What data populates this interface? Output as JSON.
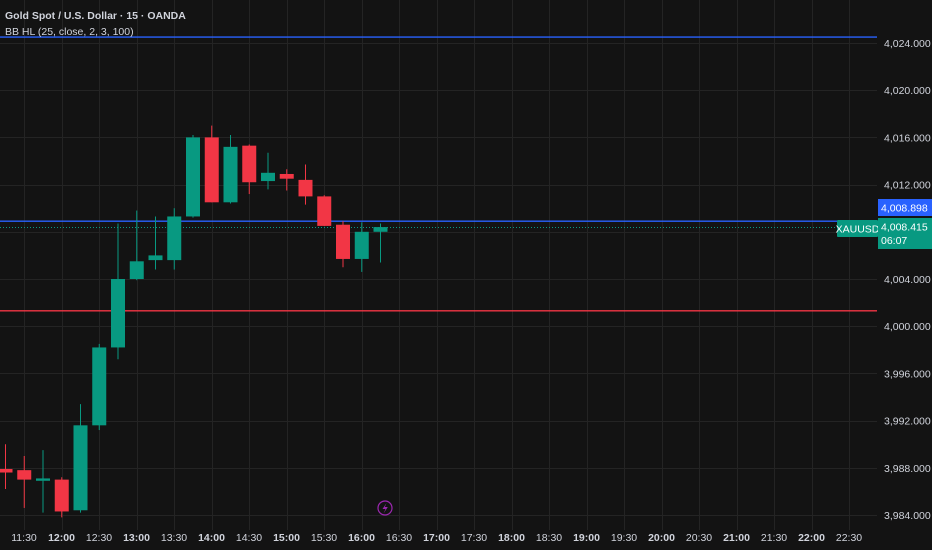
{
  "header": {
    "title": "Gold Spot / U.S. Dollar · 15 · OANDA",
    "indicator": "BB HL (25, close, 2, 3, 100)"
  },
  "price_axis": {
    "symbol": "XAUUSD",
    "blue_line_label": "4,008.898",
    "current_price_label": "4,008.415",
    "countdown": "06:07"
  },
  "colors": {
    "background": "#131313",
    "up": "#089981",
    "down": "#f23645",
    "blue_line": "#2962ff",
    "red_line": "#f23645",
    "grid": "#242424",
    "text": "#d1d4dc",
    "lightning": "#9c27b0"
  },
  "chart_data": {
    "type": "candlestick",
    "title": "Gold Spot / U.S. Dollar · 15 · OANDA",
    "x_ticks": [
      {
        "label": "11:30",
        "bold": false
      },
      {
        "label": "12:00",
        "bold": true
      },
      {
        "label": "12:30",
        "bold": false
      },
      {
        "label": "13:00",
        "bold": true
      },
      {
        "label": "13:30",
        "bold": false
      },
      {
        "label": "14:00",
        "bold": true
      },
      {
        "label": "14:30",
        "bold": false
      },
      {
        "label": "15:00",
        "bold": true
      },
      {
        "label": "15:30",
        "bold": false
      },
      {
        "label": "16:00",
        "bold": true
      },
      {
        "label": "16:30",
        "bold": false
      },
      {
        "label": "17:00",
        "bold": true
      },
      {
        "label": "17:30",
        "bold": false
      },
      {
        "label": "18:00",
        "bold": true
      },
      {
        "label": "18:30",
        "bold": false
      },
      {
        "label": "19:00",
        "bold": true
      },
      {
        "label": "19:30",
        "bold": false
      },
      {
        "label": "20:00",
        "bold": true
      },
      {
        "label": "20:30",
        "bold": false
      },
      {
        "label": "21:00",
        "bold": true
      },
      {
        "label": "21:30",
        "bold": false
      },
      {
        "label": "22:00",
        "bold": true
      },
      {
        "label": "22:30",
        "bold": false
      }
    ],
    "y_ticks": [
      "3,984.000",
      "3,988.000",
      "3,992.000",
      "3,996.000",
      "4,000.000",
      "4,004.000",
      "4,008.000",
      "4,012.000",
      "4,016.000",
      "4,020.000",
      "4,024.000"
    ],
    "y_tick_values": [
      3984,
      3988,
      3992,
      3996,
      4000,
      4004,
      4008,
      4012,
      4016,
      4020,
      4024
    ],
    "ylim": [
      3983.5,
      4028.3
    ],
    "grid": true,
    "candles": [
      {
        "t": "11:30",
        "o": 3987.9,
        "h": 3990.0,
        "l": 3986.2,
        "c": 3987.6
      },
      {
        "t": "11:45",
        "o": 3987.8,
        "h": 3989.0,
        "l": 3984.6,
        "c": 3987.0
      },
      {
        "t": "12:00",
        "o": 3986.9,
        "h": 3989.5,
        "l": 3984.2,
        "c": 3987.1
      },
      {
        "t": "12:15",
        "o": 3987.0,
        "h": 3987.2,
        "l": 3983.8,
        "c": 3984.3
      },
      {
        "t": "12:30",
        "o": 3984.4,
        "h": 3993.4,
        "l": 3984.2,
        "c": 3991.6
      },
      {
        "t": "12:45",
        "o": 3991.6,
        "h": 3998.5,
        "l": 3991.2,
        "c": 3998.2
      },
      {
        "t": "13:00",
        "o": 3998.2,
        "h": 4008.7,
        "l": 3997.2,
        "c": 4004.0
      },
      {
        "t": "13:15",
        "o": 4004.0,
        "h": 4009.8,
        "l": 4003.9,
        "c": 4005.5
      },
      {
        "t": "13:30",
        "o": 4005.6,
        "h": 4009.3,
        "l": 4004.8,
        "c": 4006.0
      },
      {
        "t": "13:45",
        "o": 4005.6,
        "h": 4010.0,
        "l": 4004.8,
        "c": 4009.3
      },
      {
        "t": "14:00",
        "o": 4009.3,
        "h": 4016.2,
        "l": 4009.2,
        "c": 4016.0
      },
      {
        "t": "14:15",
        "o": 4016.0,
        "h": 4017.0,
        "l": 4010.5,
        "c": 4010.5
      },
      {
        "t": "14:30",
        "o": 4010.5,
        "h": 4016.2,
        "l": 4010.4,
        "c": 4015.2
      },
      {
        "t": "14:45",
        "o": 4015.3,
        "h": 4015.4,
        "l": 4011.2,
        "c": 4012.2
      },
      {
        "t": "15:00",
        "o": 4012.3,
        "h": 4014.7,
        "l": 4011.6,
        "c": 4013.0
      },
      {
        "t": "15:15",
        "o": 4012.9,
        "h": 4013.3,
        "l": 4011.5,
        "c": 4012.5
      },
      {
        "t": "15:30",
        "o": 4012.4,
        "h": 4013.7,
        "l": 4010.3,
        "c": 4011.0
      },
      {
        "t": "15:45",
        "o": 4011.0,
        "h": 4011.1,
        "l": 4008.5,
        "c": 4008.5
      },
      {
        "t": "16:00",
        "o": 4008.6,
        "h": 4008.9,
        "l": 4005.0,
        "c": 4005.7
      },
      {
        "t": "16:15",
        "o": 4005.7,
        "h": 4008.8,
        "l": 4004.6,
        "c": 4008.0
      },
      {
        "t": "16:30",
        "o": 4008.0,
        "h": 4008.7,
        "l": 4005.4,
        "c": 4008.4
      }
    ],
    "horizontal_lines": [
      {
        "name": "upper band",
        "value": 4024.5,
        "color": "#2962ff"
      },
      {
        "name": "middle",
        "value": 4008.898,
        "color": "#2962ff"
      },
      {
        "name": "lower band",
        "value": 4001.3,
        "color": "#f23645"
      }
    ],
    "current_price": 4008.415
  }
}
